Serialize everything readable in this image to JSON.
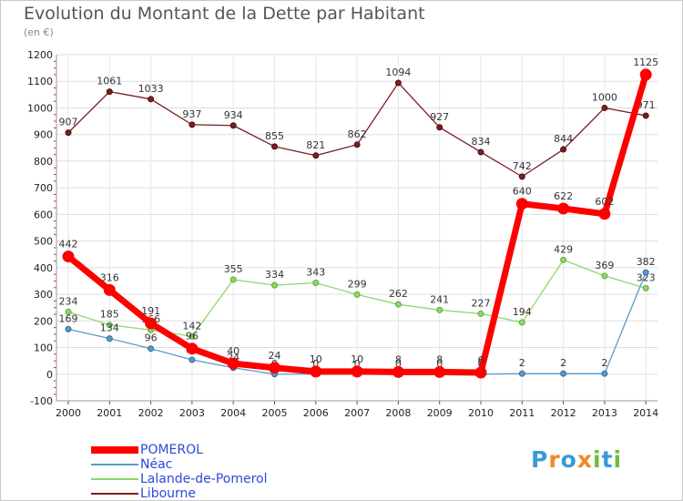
{
  "chart_data": {
    "type": "line",
    "title": "Evolution du Montant de la Dette par Habitant",
    "unit_label": "(en €)",
    "x": [
      "2000",
      "2001",
      "2002",
      "2003",
      "2004",
      "2005",
      "2006",
      "2007",
      "2008",
      "2009",
      "2010",
      "2011",
      "2012",
      "2013",
      "2014"
    ],
    "ylim": [
      -100,
      1200
    ],
    "yticks": [
      -100,
      0,
      100,
      200,
      300,
      400,
      500,
      600,
      700,
      800,
      900,
      1000,
      1100,
      1200
    ],
    "grid": true,
    "legend_position": "bottom-left",
    "series": [
      {
        "name": "POMEROL",
        "color": "#ff0000",
        "values": [
          442,
          316,
          191,
          96,
          40,
          24,
          10,
          10,
          8,
          8,
          6,
          640,
          622,
          602,
          1125
        ]
      },
      {
        "name": "Néac",
        "color": "#5a9ac8",
        "values": [
          169,
          134,
          96,
          54,
          24,
          0,
          0,
          0,
          0,
          0,
          0,
          2,
          2,
          2,
          382
        ]
      },
      {
        "name": "Lalande-de-Pomerol",
        "color": "#8ed86a",
        "values": [
          234,
          185,
          166,
          142,
          355,
          334,
          343,
          299,
          262,
          241,
          227,
          194,
          429,
          369,
          323
        ]
      },
      {
        "name": "Libourne",
        "color": "#7a1f23",
        "values": [
          907,
          1061,
          1033,
          937,
          934,
          855,
          821,
          862,
          1094,
          927,
          834,
          742,
          844,
          1000,
          971
        ]
      }
    ]
  },
  "brand": {
    "letters": [
      "P",
      "r",
      "o",
      "x",
      "i",
      "t",
      "i"
    ],
    "colors": [
      "#3a9ad9",
      "#f08a24",
      "#3a9ad9",
      "#f08a24",
      "#6cbf3a",
      "#3a9ad9",
      "#6cbf3a"
    ]
  }
}
